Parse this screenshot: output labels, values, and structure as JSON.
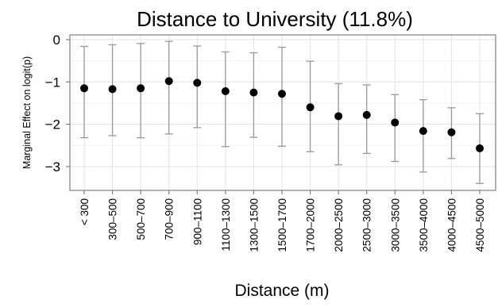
{
  "chart_data": {
    "type": "scatter",
    "title": "Distance to University (11.8%)",
    "xlabel": "Distance (m)",
    "ylabel": "Marginal Effect on logit(p)",
    "ylim": [
      -3.55,
      0.1
    ],
    "yticks": [
      0,
      -1,
      -2,
      -3
    ],
    "ytick_labels": [
      "0",
      "−1",
      "−2",
      "−3"
    ],
    "grid": true,
    "legend": "none",
    "colors": {
      "point": "#000000",
      "errorbar": "#999999",
      "grid": "#e6e6e6",
      "frame": "#7f7f7f"
    },
    "categories": [
      "< 300",
      "300–500",
      "500–700",
      "700–900",
      "900–1100",
      "1100–1300",
      "1300–1500",
      "1500–1700",
      "1700–2000",
      "2000–2500",
      "2500–3000",
      "3000–3500",
      "3500–4000",
      "4000–4500",
      "4500–5000"
    ],
    "values": [
      -1.15,
      -1.17,
      -1.15,
      -0.98,
      -1.02,
      -1.22,
      -1.25,
      -1.28,
      -1.6,
      -1.81,
      -1.78,
      -1.96,
      -2.16,
      -2.19,
      -2.57
    ],
    "lower": [
      -2.32,
      -2.27,
      -2.32,
      -2.23,
      -2.08,
      -2.53,
      -2.31,
      -2.52,
      -2.65,
      -2.96,
      -2.69,
      -2.88,
      -3.13,
      -2.81,
      -3.4
    ],
    "upper": [
      -0.16,
      -0.12,
      -0.09,
      -0.04,
      -0.15,
      -0.29,
      -0.31,
      -0.18,
      -0.51,
      -1.04,
      -1.07,
      -1.3,
      -1.42,
      -1.61,
      -1.75
    ]
  }
}
